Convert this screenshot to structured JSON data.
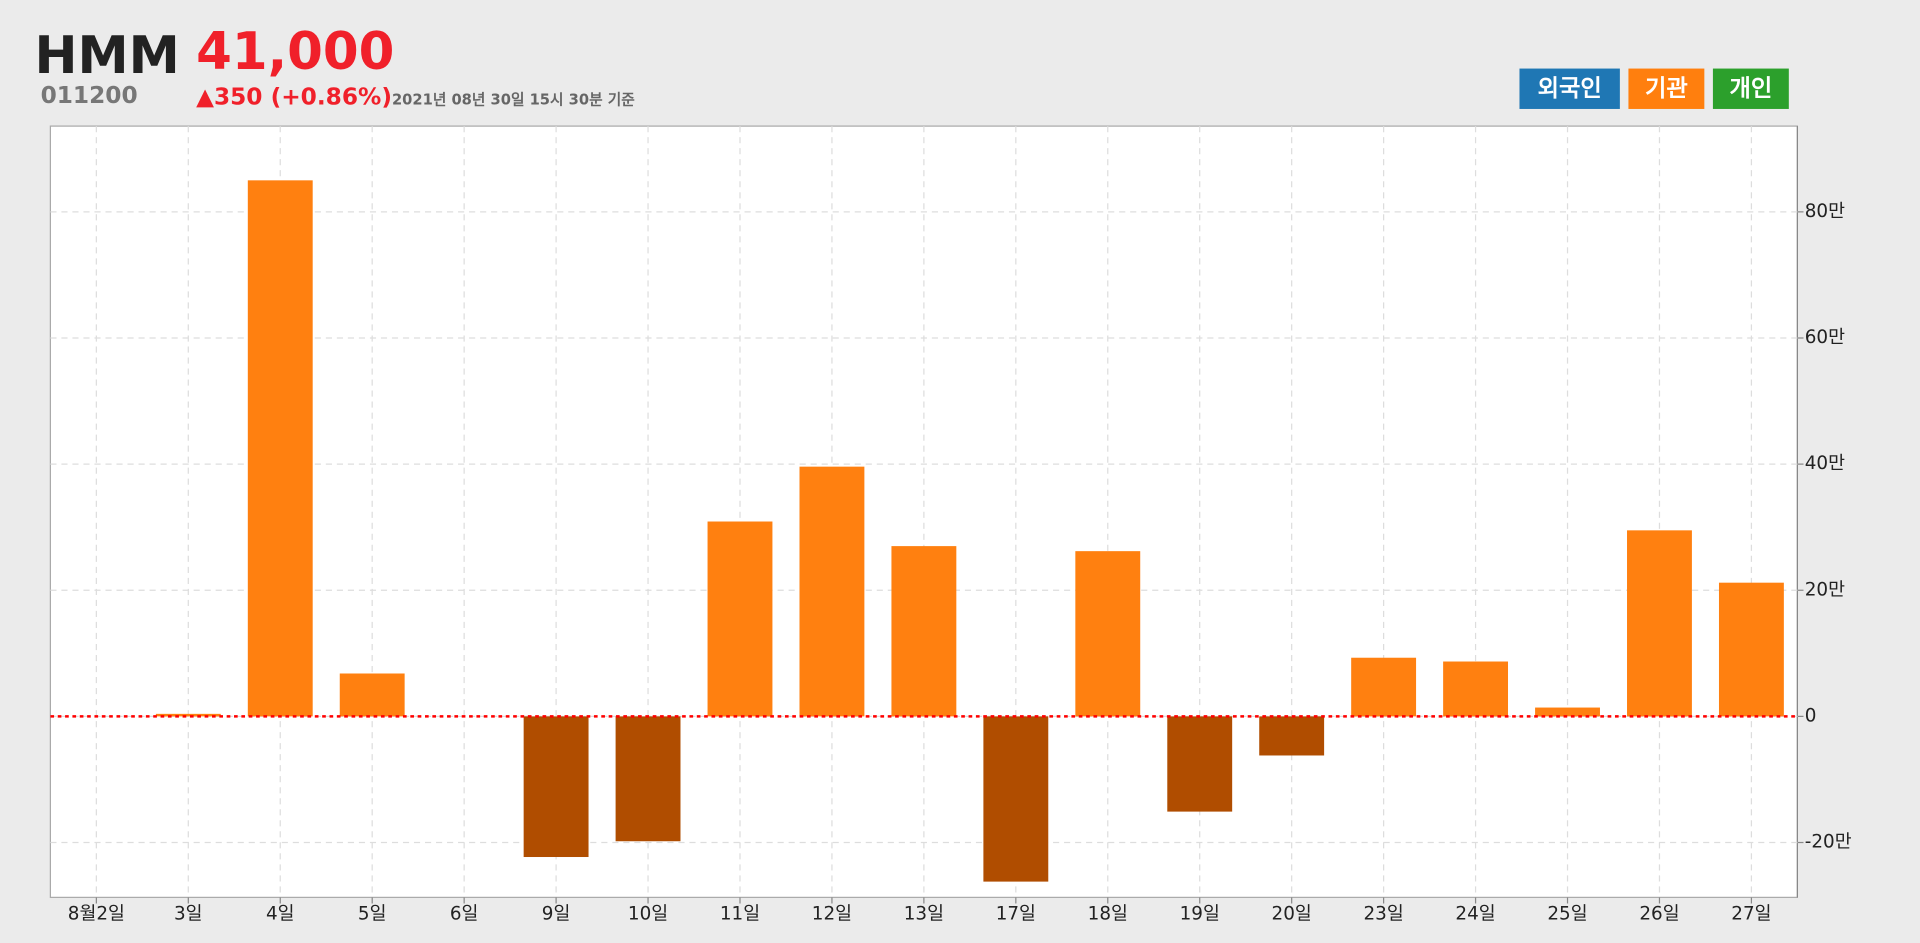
{
  "header": {
    "title": "HMM",
    "code": "011200",
    "price": "41,000",
    "change": "▲350 (+0.86%)",
    "timestamp": "2021년 08년 30일 15시 30분 기준"
  },
  "buttons": [
    {
      "label": "외국인",
      "color": "#1f77b4"
    },
    {
      "label": "기관",
      "color": "#ff7f0e"
    },
    {
      "label": "개인",
      "color": "#2ca02c"
    }
  ],
  "chart_data": {
    "type": "bar",
    "categories": [
      "8월2일",
      "3일",
      "4일",
      "5일",
      "6일",
      "9일",
      "10일",
      "11일",
      "12일",
      "13일",
      "17일",
      "18일",
      "19일",
      "20일",
      "23일",
      "24일",
      "25일",
      "26일",
      "27일"
    ],
    "values": [
      0,
      0.4,
      85.0,
      6.8,
      0,
      -22.3,
      -19.8,
      30.9,
      39.6,
      27.0,
      -26.2,
      26.2,
      -15.1,
      -6.2,
      9.3,
      8.7,
      1.4,
      29.5,
      21.2
    ],
    "color": "#ff8010",
    "negative_color": "#b04d00",
    "zero_line_color": "#ff0000",
    "ylim": [
      -28.7,
      93.6
    ],
    "yticks": [
      {
        "value": -20,
        "label": "-20만"
      },
      0,
      {
        "value": 20,
        "label": "20만"
      },
      {
        "value": 40,
        "label": "40만"
      },
      {
        "value": 60,
        "label": "60만"
      },
      {
        "value": 80,
        "label": "80만"
      }
    ],
    "grid": true
  }
}
